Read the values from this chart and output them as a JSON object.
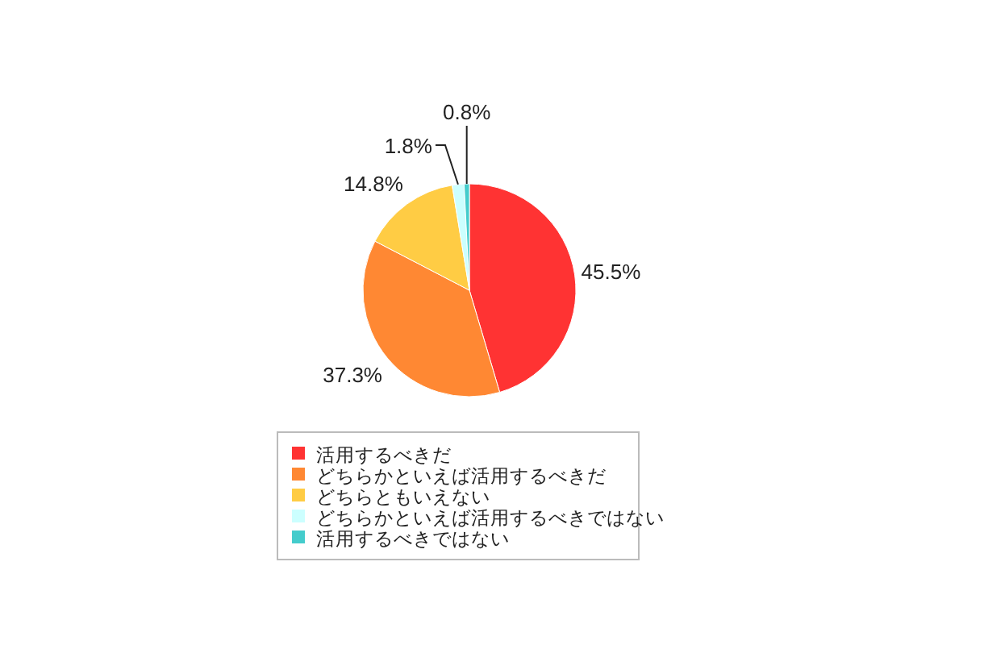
{
  "chart_data": {
    "type": "pie",
    "categories": [
      "活用するべきだ",
      "どちらかといえば活用するべきだ",
      "どちらともいえない",
      "どちらかといえば活用するべきではない",
      "活用するべきではない"
    ],
    "values": [
      45.5,
      37.3,
      14.8,
      1.8,
      0.8
    ],
    "colors": [
      "#ff3333",
      "#ff8833",
      "#ffcc44",
      "#ccffff",
      "#44cccc"
    ],
    "value_labels": [
      "45.5%",
      "37.3%",
      "14.8%",
      "1.8%",
      "0.8%"
    ],
    "legend": "bottom"
  }
}
